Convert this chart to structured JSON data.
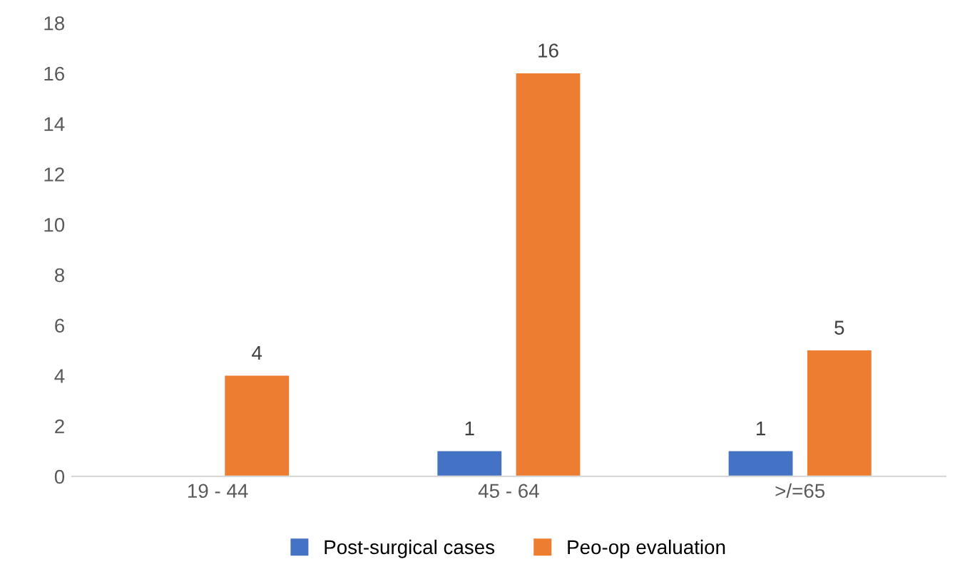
{
  "chart_data": {
    "type": "bar",
    "categories": [
      "19 - 44",
      "45 - 64",
      ">/=65"
    ],
    "series": [
      {
        "name": "Post-surgical cases",
        "color": "#4472c4",
        "values": [
          0,
          1,
          1
        ],
        "value_labels": [
          null,
          "1",
          "1"
        ]
      },
      {
        "name": "Peo-op evaluation",
        "color": "#ed7d31",
        "values": [
          4,
          16,
          5
        ],
        "value_labels": [
          "4",
          "16",
          "5"
        ]
      }
    ],
    "ylim": [
      0,
      18
    ],
    "yticks": [
      0,
      2,
      4,
      6,
      8,
      10,
      12,
      14,
      16,
      18
    ],
    "grid": false,
    "legend": "bottom"
  }
}
